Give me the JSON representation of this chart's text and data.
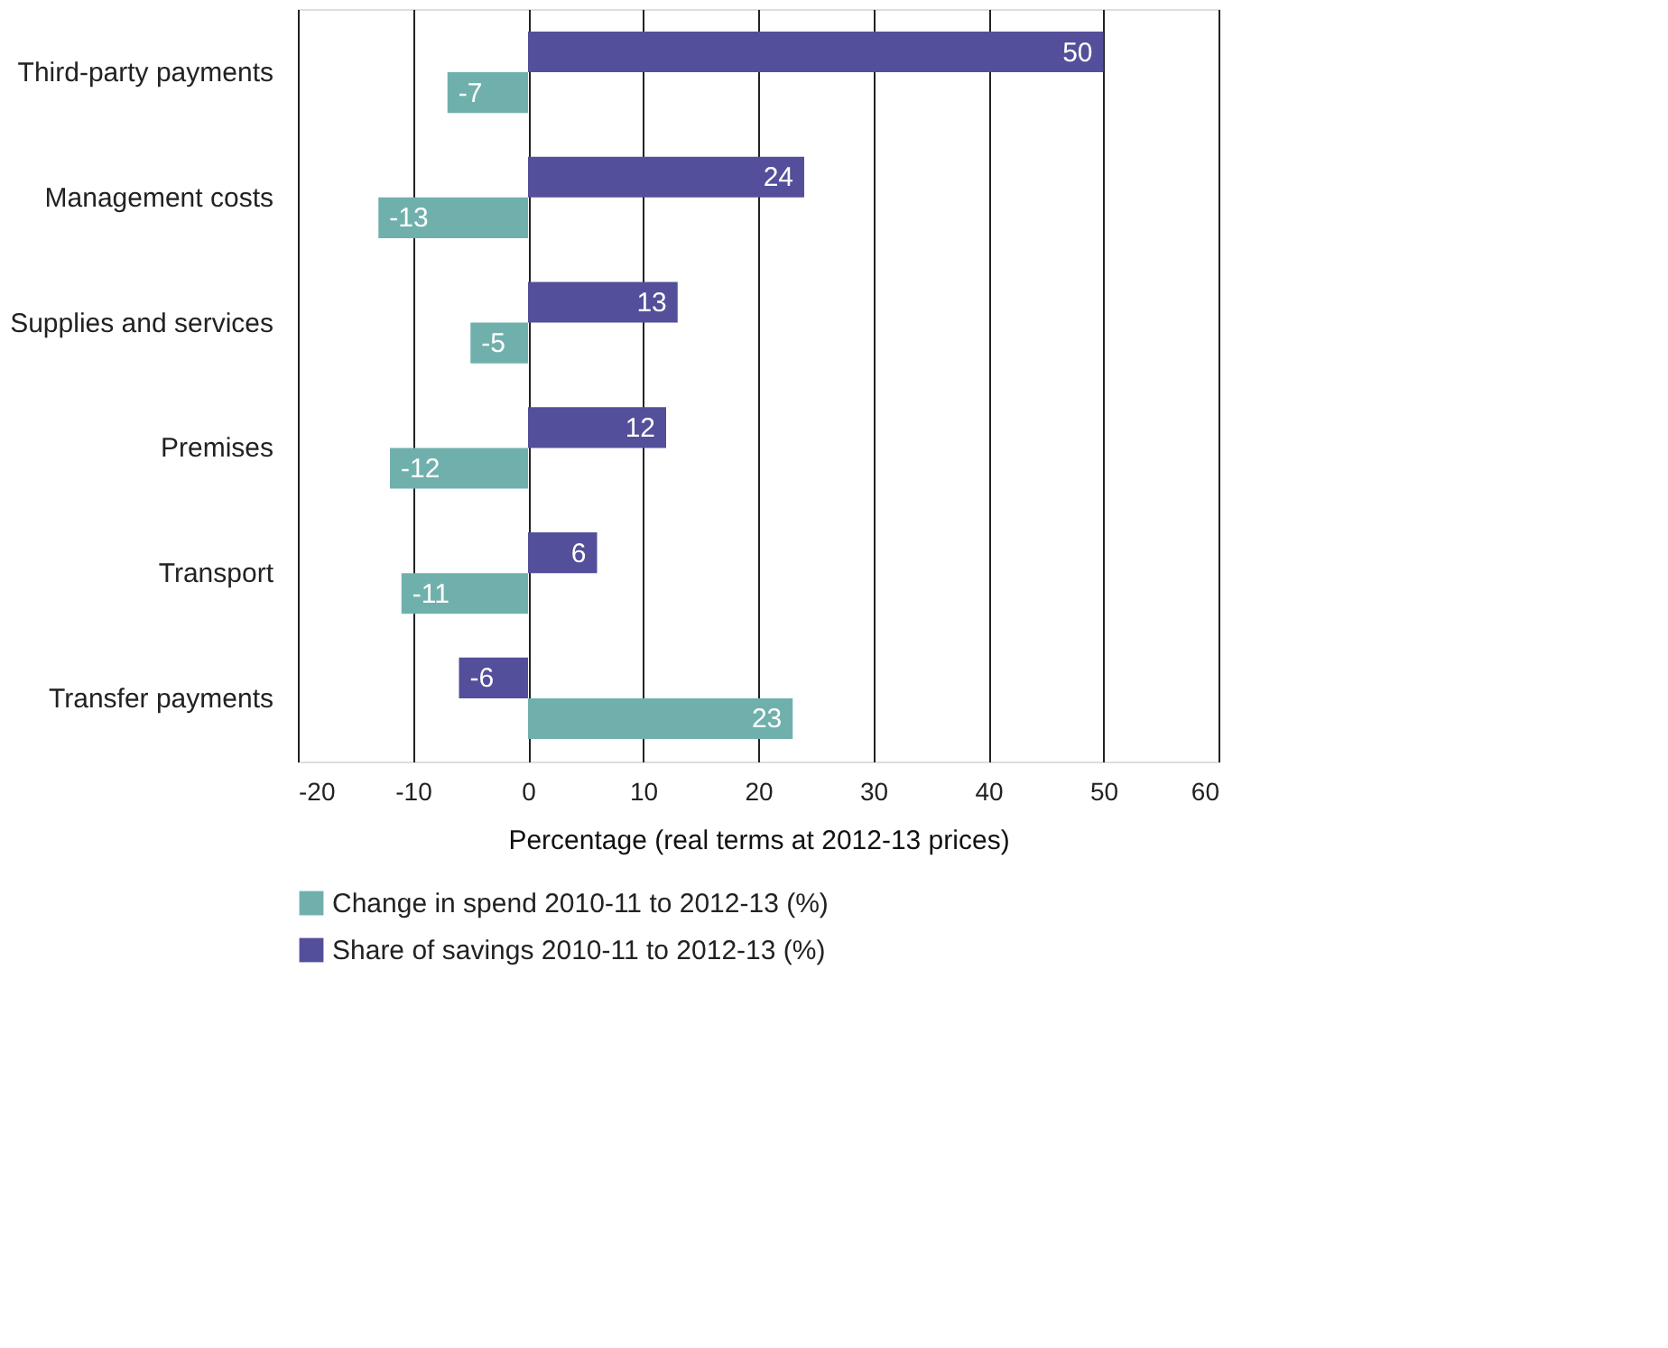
{
  "chart_data": {
    "type": "bar",
    "orientation": "horizontal",
    "xlabel": "Percentage (real terms at 2012-13 prices)",
    "categories": [
      "Third-party payments",
      "Management costs",
      "Supplies and services",
      "Premises",
      "Transport",
      "Transfer payments"
    ],
    "series": [
      {
        "name": "Change in spend 2010-11 to 2012-13 (%)",
        "color": "#70b0ac",
        "values": [
          -7,
          -13,
          -5,
          -12,
          -11,
          23
        ]
      },
      {
        "name": "Share of savings 2010-11 to 2012-13 (%)",
        "color": "#534f9a",
        "values": [
          50,
          24,
          13,
          12,
          6,
          -6
        ]
      }
    ],
    "xlim": [
      -20,
      60
    ],
    "xticks": [
      -20,
      -10,
      0,
      10,
      20,
      30,
      40,
      50,
      60
    ],
    "grid": "x",
    "legend": "bottom",
    "data_labels": true
  }
}
